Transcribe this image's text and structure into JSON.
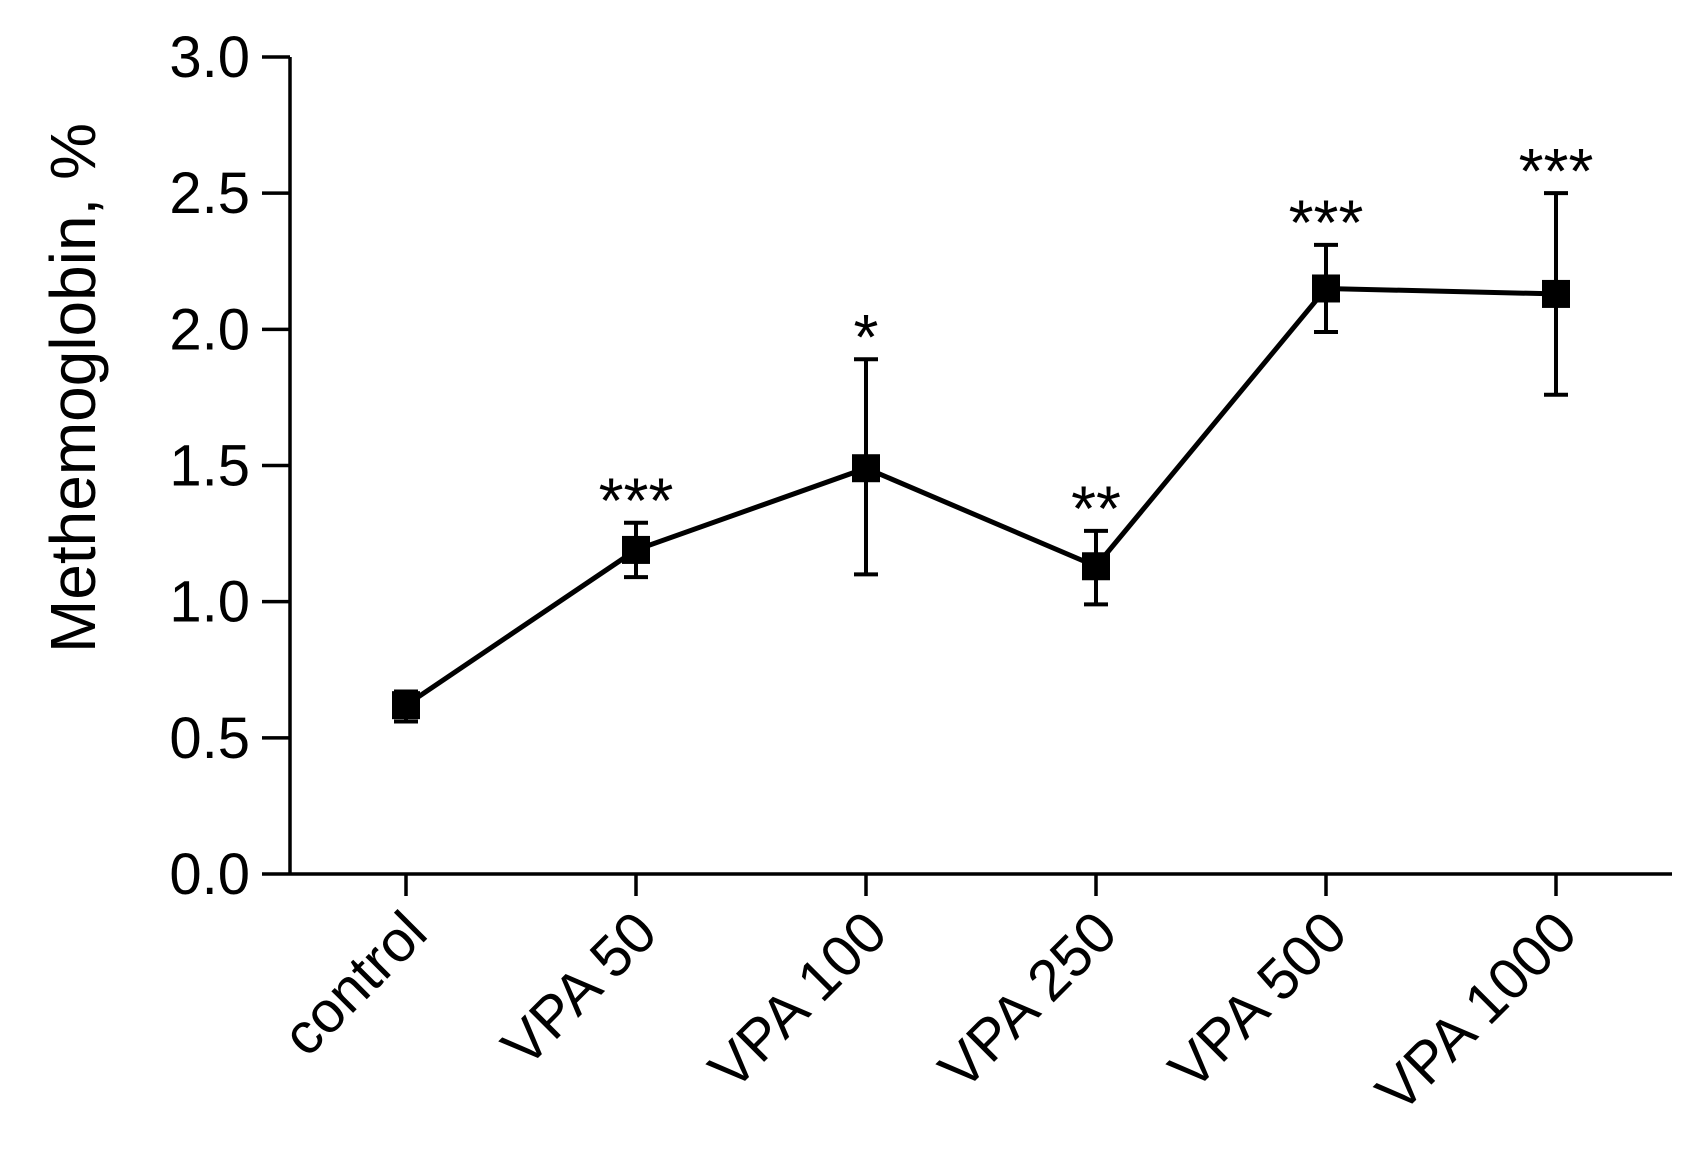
{
  "chart_data": {
    "type": "line",
    "title": "",
    "xlabel": "",
    "ylabel": "Methemoglobin, %",
    "ylim": [
      0,
      3.0
    ],
    "yticks": [
      "0.0",
      "0.5",
      "1.0",
      "1.5",
      "2.0",
      "2.5",
      "3.0"
    ],
    "categories": [
      "control",
      "VPA 50",
      "VPA 100",
      "VPA 250",
      "VPA 500",
      "VPA 1000"
    ],
    "series": [
      {
        "name": "Methemoglobin",
        "values": [
          0.62,
          1.19,
          1.49,
          1.13,
          2.15,
          2.13
        ],
        "error_upper": [
          0.67,
          1.29,
          1.89,
          1.26,
          2.31,
          2.5
        ],
        "error_lower": [
          0.56,
          1.09,
          1.1,
          0.99,
          1.99,
          1.76
        ]
      }
    ],
    "significance": [
      "",
      "***",
      "*",
      "**",
      "***",
      "***"
    ],
    "colors": {
      "line": "#000000",
      "marker": "#000000",
      "background": "#ffffff"
    }
  }
}
